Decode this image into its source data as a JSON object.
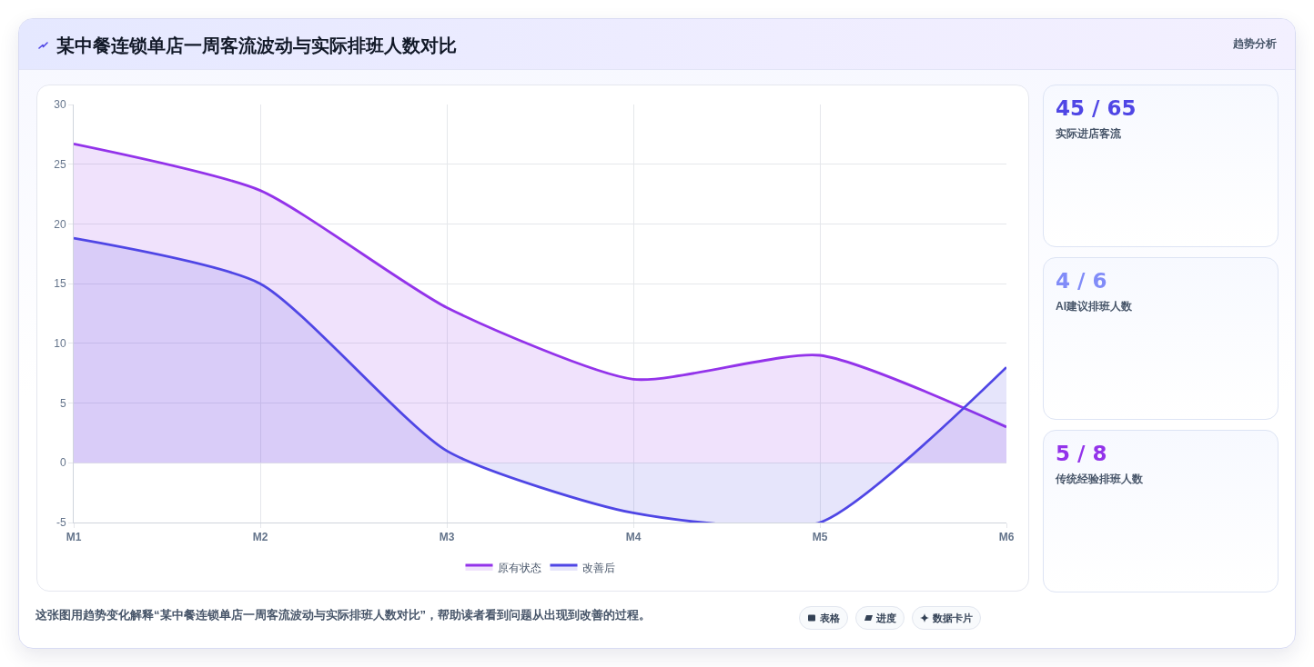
{
  "chart_data": {
    "type": "area",
    "title": "某中餐连锁单店一周客流波动与实际排班人数对比",
    "subtitle": "趋势分析",
    "categories": [
      "M1",
      "M2",
      "M3",
      "M4",
      "M5",
      "M6"
    ],
    "series": [
      {
        "name": "原有状态",
        "color": "#9333ea",
        "values": [
          26.7,
          22.8,
          13,
          7,
          9,
          3
        ]
      },
      {
        "name": "改善后",
        "color": "#4f46e5",
        "values": [
          18.8,
          15,
          1,
          -4.2,
          -5,
          8
        ]
      }
    ],
    "ylim": [
      -5,
      30
    ],
    "yticks": [
      -5,
      0,
      5,
      10,
      15,
      20,
      25,
      30
    ],
    "grid": true,
    "legend": "bottom",
    "annotations": [
      "这张图用趋势变化解释“某中餐连锁单店一周客流波动与实际排班人数对比”，帮助读者看到问题从出现到改善的过程。",
      "表格",
      "进度",
      "数据卡片",
      "45 / 65",
      "实际进店客流",
      "4 / 6",
      "AI建议排班人数",
      "5 / 8",
      "传统经验排班人数"
    ]
  }
}
